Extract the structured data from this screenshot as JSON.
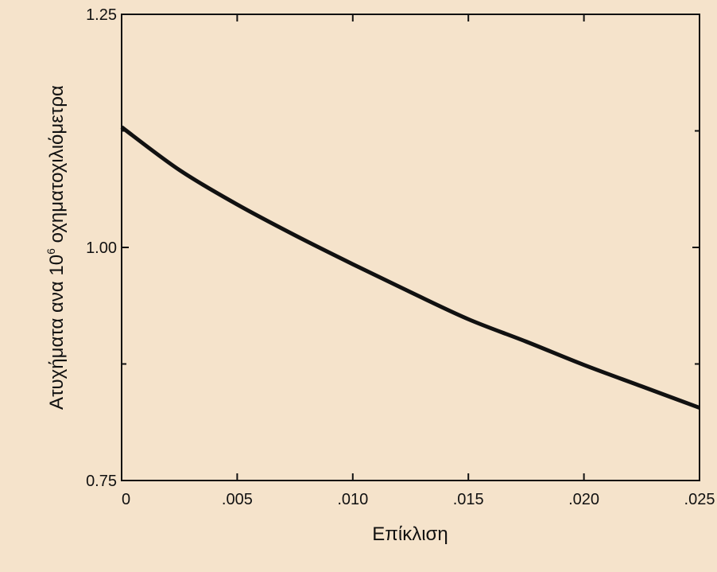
{
  "chart_data": {
    "type": "line",
    "title": "",
    "xlabel": "Επίκλιση",
    "ylabel": {
      "before": "Ατυχήματα ανα 10",
      "superscript": "6",
      "after": " οχηματοχιλιόμετρα"
    },
    "xlim": [
      0,
      0.025
    ],
    "ylim": [
      0.75,
      1.25
    ],
    "xticks": [
      {
        "value": 0,
        "label": "0"
      },
      {
        "value": 0.005,
        "label": ".005"
      },
      {
        "value": 0.01,
        "label": ".010"
      },
      {
        "value": 0.015,
        "label": ".015"
      },
      {
        "value": 0.02,
        "label": ".020"
      },
      {
        "value": 0.025,
        "label": ".025"
      }
    ],
    "yticks": [
      {
        "value": 0.75,
        "label": "0.75"
      },
      {
        "value": 1.0,
        "label": "1.00"
      },
      {
        "value": 1.25,
        "label": "1.25"
      }
    ],
    "yminorticks": [
      0.875,
      1.125
    ],
    "grid": false,
    "series": [
      {
        "color": "#111111",
        "x": [
          0,
          0.0025,
          0.005,
          0.0075,
          0.01,
          0.0125,
          0.015,
          0.0175,
          0.02,
          0.0225,
          0.025
        ],
        "y": [
          1.129,
          1.083,
          1.046,
          1.013,
          0.982,
          0.952,
          0.923,
          0.899,
          0.874,
          0.851,
          0.828
        ]
      }
    ]
  }
}
